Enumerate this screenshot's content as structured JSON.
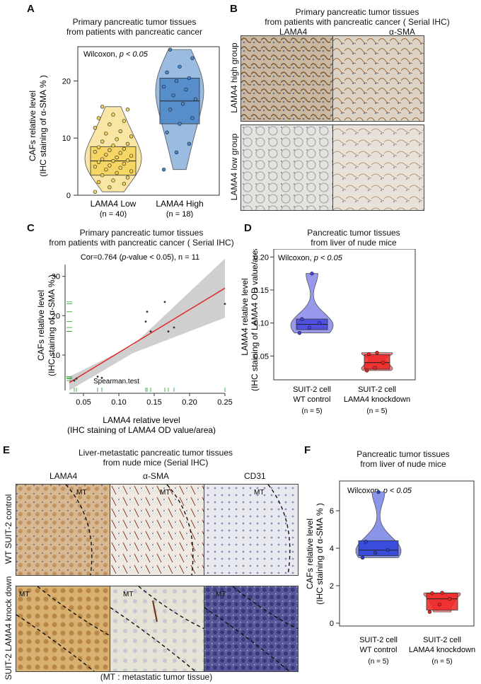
{
  "panel_a": {
    "label": "A",
    "title_line1": "Primary pancreatic tumor tissues",
    "title_line2": "from patients with pancreatic cancer",
    "chart_data": {
      "type": "violin-boxplot",
      "test": "Wilcoxon,",
      "p_text": "p < 0.05",
      "ylabel_line1": "CAFs relative level",
      "ylabel_line2": "(IHC staining of α-SMA % )",
      "yticks": [
        0,
        10,
        20
      ],
      "ylim": [
        0,
        26
      ],
      "groups": [
        {
          "name": "LAMA4 Low",
          "n_label": "(n = 40)",
          "color": "#f4d25a",
          "q1": 3.5,
          "median": 6,
          "q3": 8.5,
          "points": [
            0.6,
            1.4,
            2.0,
            2.6,
            3.1,
            3.5,
            3.9,
            4.2,
            4.5,
            4.8,
            5.0,
            5.2,
            5.5,
            5.8,
            6.0,
            6.1,
            6.3,
            6.6,
            6.9,
            7.1,
            7.4,
            7.6,
            7.9,
            8.1,
            8.4,
            8.7,
            9.0,
            9.4,
            9.8,
            10.3,
            10.8,
            11.2,
            11.8,
            12.4,
            13.0,
            13.5,
            14.1,
            15.0,
            15.5,
            2.3
          ]
        },
        {
          "name": "LAMA4 High",
          "n_label": "(n = 18)",
          "color": "#4a86c8",
          "q1": 12.5,
          "median": 16.5,
          "q3": 20.5,
          "points": [
            4.5,
            7.5,
            9.0,
            11.0,
            12.5,
            13.5,
            15.0,
            16.0,
            16.8,
            17.5,
            18.5,
            19.0,
            20.0,
            20.5,
            21.5,
            22.5,
            24.0,
            25.5
          ]
        }
      ]
    }
  },
  "panel_b": {
    "label": "B",
    "title_line1": "Primary pancreatic tumor tissues",
    "title_line2": "from patients with pancreatic cancer ( Serial IHC)",
    "col1": "LAMA4",
    "col2": "α-SMA",
    "row1": "LAMA4 high group",
    "row2": "LAMA4 low group"
  },
  "panel_c": {
    "label": "C",
    "title_line1": "Primary pancreatic tumor tissues",
    "title_line2": "from patients with pancreatic cancer ( Serial IHC)",
    "chart_data": {
      "type": "scatter",
      "annotation_prefix": "Cor=0.764 (",
      "annotation_p": "p",
      "annotation_suffix": "-value < 0.05), n = 11",
      "legend_text": "Spearman.test",
      "xlabel_line1": "LAMA4 relative level",
      "xlabel_line2": "(IHC staining of LAMA4 OD value/area)",
      "ylabel_line1": "CAFs relative level",
      "ylabel_line2": "(IHC staining of α-SMA % )",
      "xticks": [
        "0.05",
        "0.10",
        "0.15",
        "0.20",
        "0.25"
      ],
      "yticks": [
        "10",
        "20",
        "30"
      ],
      "xlim": [
        0.03,
        0.25
      ],
      "ylim": [
        1,
        33
      ],
      "points": [
        [
          0.037,
          3.5
        ],
        [
          0.07,
          4.5
        ],
        [
          0.076,
          4.2
        ],
        [
          0.138,
          18.5
        ],
        [
          0.14,
          21
        ],
        [
          0.145,
          16
        ],
        [
          0.165,
          23.5
        ],
        [
          0.17,
          16
        ],
        [
          0.178,
          17
        ],
        [
          0.25,
          23
        ],
        [
          0.04,
          4
        ]
      ],
      "fit": {
        "x0": 0.03,
        "y0": 3.0,
        "x1": 0.25,
        "y1": 27.0
      }
    }
  },
  "panel_d": {
    "label": "D",
    "title_line1": "Pancreatic tumor tissues",
    "title_line2": "from liver of nude mice",
    "chart_data": {
      "type": "violin-boxplot",
      "test": "Wilcoxon,",
      "p_text": "p < 0.05",
      "ylabel_line1": "LAMA4 relative level",
      "ylabel_line2": "(IHC staining of LAMA4 OD value/area)",
      "yticks": [
        "0.05",
        "0.10",
        "0.15",
        "0.20"
      ],
      "ylim": [
        0.015,
        0.21
      ],
      "groups": [
        {
          "line1": "SUIT-2 cell",
          "line2": "WT control",
          "n_label": "(n = 5)",
          "color": "#4444dd",
          "q1": 0.09,
          "median": 0.098,
          "q3": 0.106,
          "points": [
            0.085,
            0.093,
            0.1,
            0.106,
            0.175
          ]
        },
        {
          "line1": "SUIT-2 cell",
          "line2": "LAMA4 knockdown",
          "n_label": "(n = 5)",
          "color": "#ee2222",
          "q1": 0.03,
          "median": 0.04,
          "q3": 0.052,
          "points": [
            0.028,
            0.032,
            0.04,
            0.053,
            0.055
          ]
        }
      ]
    }
  },
  "panel_e": {
    "label": "E",
    "title_line1": "Liver-metastatic pancreatic tumor tissues",
    "title_line2": "from nude mice (Serial IHC)",
    "col1": "LAMA4",
    "col2": "α-SMA",
    "col3": "CD31",
    "row1": "WT SUIT-2 control",
    "row2": "SUIT-2 LAMA4 knock down",
    "mt": "MT",
    "footnote": "(MT : metastatic tumor tissue)"
  },
  "panel_f": {
    "label": "F",
    "title_line1": "Pancreatic tumor tissues",
    "title_line2": "from liver of nude mice",
    "chart_data": {
      "type": "violin-boxplot",
      "test": "Wilcoxon,",
      "p_text": "p < 0.05",
      "ylabel_line1": "CAFs relative level",
      "ylabel_line2": "(IHC staining of α-SMA % )",
      "yticks": [
        "0",
        "2",
        "4",
        "6"
      ],
      "ylim": [
        0,
        7.4
      ],
      "groups": [
        {
          "line1": "SUIT-2 cell",
          "line2": "WT control",
          "n_label": "(n = 5)",
          "color": "#2a3fd8",
          "q1": 3.6,
          "median": 3.9,
          "q3": 4.4,
          "points": [
            3.5,
            3.75,
            3.9,
            4.35,
            7.0
          ]
        },
        {
          "line1": "SUIT-2 cell",
          "line2": "LAMA4 knockdown",
          "n_label": "(n = 5)",
          "color": "#ee2222",
          "q1": 0.7,
          "median": 1.3,
          "q3": 1.6,
          "points": [
            0.6,
            1.0,
            1.3,
            1.6,
            1.62
          ]
        }
      ]
    }
  }
}
